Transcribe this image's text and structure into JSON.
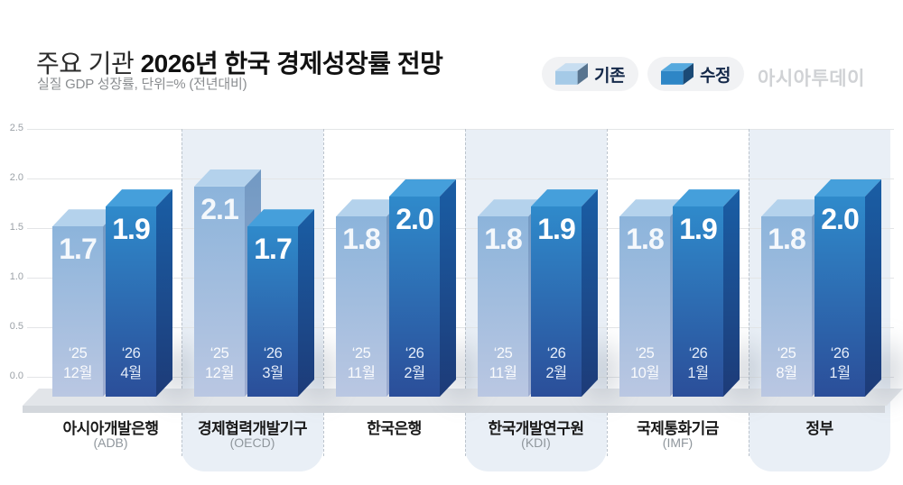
{
  "header": {
    "title_prefix": "주요 기관",
    "title_main": "2026년 한국 경제성장률 전망",
    "subtitle": "실질 GDP 성장률, 단위=% (전년대비)",
    "brand": "아시아투데이"
  },
  "legend": {
    "old_label": "기존",
    "new_label": "수정"
  },
  "colors": {
    "band": "#e9eff6",
    "grid": "#e3e5e7",
    "dashed": "#bcc4cd",
    "old_top": "#b4d2ec",
    "old_front_start": "#8cb4db",
    "old_front_end": "#bac7e2",
    "old_side_start": "#7199c3",
    "old_side_end": "#9fadd0",
    "new_top": "#459fdb",
    "new_front_start": "#2f8acb",
    "new_front_end": "#2b4e99",
    "new_side_start": "#1a5ea5",
    "new_side_end": "#1d3b78",
    "legend_old_cube": {
      "top": "#c8def1",
      "front": "#a5cae7",
      "side": "#58748f"
    },
    "legend_new_cube": {
      "top": "#56a9de",
      "front": "#2e86c6",
      "side": "#1b4a76"
    }
  },
  "chart_data": {
    "type": "bar",
    "title": "주요 기관 2026년 한국 경제성장률 전망",
    "ylabel": "실질 GDP 성장률, 단위=% (전년대비)",
    "ylim": [
      0,
      2.5
    ],
    "ytick_labels": [
      "0.0",
      "0.5",
      "1.0",
      "1.5",
      "2.0",
      "2.5"
    ],
    "grid": true,
    "legend_position": "top-right",
    "series_names": [
      "기존",
      "수정"
    ],
    "groups": [
      {
        "institution": "아시아개발은행",
        "code": "(ADB)",
        "highlight_band": false,
        "bars": [
          {
            "series": "기존",
            "value": 1.7,
            "value_label": "1.7",
            "date": [
              "‘25",
              "12월"
            ]
          },
          {
            "series": "수정",
            "value": 1.9,
            "value_label": "1.9",
            "date": [
              "‘26",
              "4월"
            ]
          }
        ]
      },
      {
        "institution": "경제협력개발기구",
        "code": "(OECD)",
        "highlight_band": true,
        "bars": [
          {
            "series": "기존",
            "value": 2.1,
            "value_label": "2.1",
            "date": [
              "‘25",
              "12월"
            ]
          },
          {
            "series": "수정",
            "value": 1.7,
            "value_label": "1.7",
            "date": [
              "‘26",
              "3월"
            ]
          }
        ]
      },
      {
        "institution": "한국은행",
        "code": "",
        "highlight_band": false,
        "bars": [
          {
            "series": "기존",
            "value": 1.8,
            "value_label": "1.8",
            "date": [
              "‘25",
              "11월"
            ]
          },
          {
            "series": "수정",
            "value": 2.0,
            "value_label": "2.0",
            "date": [
              "‘26",
              "2월"
            ]
          }
        ]
      },
      {
        "institution": "한국개발연구원",
        "code": "(KDI)",
        "highlight_band": true,
        "bars": [
          {
            "series": "기존",
            "value": 1.8,
            "value_label": "1.8",
            "date": [
              "‘25",
              "11월"
            ]
          },
          {
            "series": "수정",
            "value": 1.9,
            "value_label": "1.9",
            "date": [
              "‘26",
              "2월"
            ]
          }
        ]
      },
      {
        "institution": "국제통화기금",
        "code": "(IMF)",
        "highlight_band": false,
        "bars": [
          {
            "series": "기존",
            "value": 1.8,
            "value_label": "1.8",
            "date": [
              "‘25",
              "10월"
            ]
          },
          {
            "series": "수정",
            "value": 1.9,
            "value_label": "1.9",
            "date": [
              "‘26",
              "1월"
            ]
          }
        ]
      },
      {
        "institution": "정부",
        "code": "",
        "highlight_band": true,
        "bars": [
          {
            "series": "기존",
            "value": 1.8,
            "value_label": "1.8",
            "date": [
              "‘25",
              "8월"
            ]
          },
          {
            "series": "수정",
            "value": 2.0,
            "value_label": "2.0",
            "date": [
              "‘26",
              "1월"
            ]
          }
        ]
      }
    ]
  }
}
